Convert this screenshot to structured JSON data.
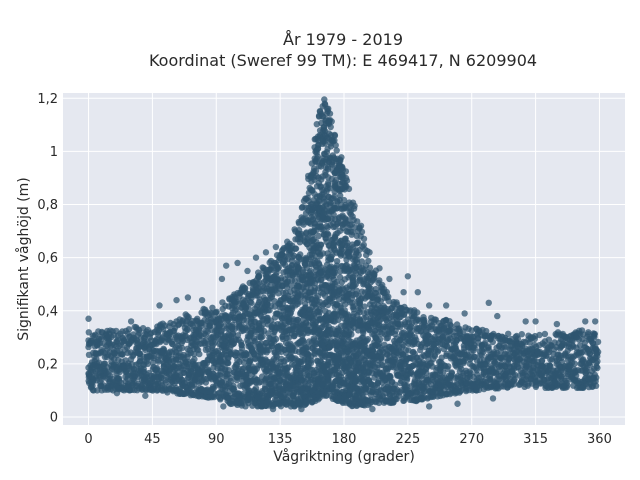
{
  "chart_data": {
    "type": "scatter",
    "title_line1": "År 1979 - 2019",
    "title_line2": "Koordinat (Sweref 99 TM): E 469417, N 6209904",
    "xlabel": "Vågriktning (grader)",
    "ylabel": "Signifikant våghöjd (m)",
    "xlim": [
      -18,
      378
    ],
    "ylim": [
      -0.03,
      1.22
    ],
    "x_ticks": [
      0,
      45,
      90,
      135,
      180,
      225,
      270,
      315,
      360
    ],
    "x_tick_labels": [
      "0",
      "45",
      "90",
      "135",
      "180",
      "225",
      "270",
      "315",
      "360"
    ],
    "y_ticks": [
      0,
      0.2,
      0.4,
      0.6,
      0.8,
      1.0,
      1.2
    ],
    "y_tick_labels": [
      "0",
      "0,2",
      "0,4",
      "0,6",
      "0,8",
      "1",
      "1,2"
    ],
    "grid": true,
    "background_color": "#e5e8f0",
    "marker_color": "#2f5670",
    "envelope": {
      "x": [
        0,
        20,
        45,
        60,
        75,
        90,
        100,
        110,
        120,
        130,
        140,
        145,
        150,
        155,
        160,
        163,
        166,
        169,
        172,
        175,
        180,
        185,
        190,
        195,
        200,
        205,
        210,
        220,
        230,
        240,
        250,
        260,
        270,
        280,
        290,
        300,
        315,
        330,
        345,
        360
      ],
      "upper": [
        0.32,
        0.33,
        0.35,
        0.37,
        0.4,
        0.42,
        0.45,
        0.5,
        0.55,
        0.6,
        0.65,
        0.7,
        0.78,
        0.92,
        1.05,
        1.15,
        1.2,
        1.18,
        1.1,
        1.02,
        0.95,
        0.85,
        0.75,
        0.65,
        0.58,
        0.52,
        0.47,
        0.42,
        0.4,
        0.38,
        0.37,
        0.35,
        0.34,
        0.33,
        0.33,
        0.32,
        0.31,
        0.32,
        0.33,
        0.32
      ],
      "lower": [
        0.1,
        0.1,
        0.1,
        0.09,
        0.08,
        0.07,
        0.05,
        0.04,
        0.04,
        0.04,
        0.04,
        0.04,
        0.04,
        0.05,
        0.06,
        0.07,
        0.08,
        0.08,
        0.07,
        0.06,
        0.05,
        0.04,
        0.04,
        0.04,
        0.05,
        0.05,
        0.05,
        0.06,
        0.06,
        0.07,
        0.08,
        0.09,
        0.1,
        0.1,
        0.11,
        0.11,
        0.11,
        0.11,
        0.11,
        0.11
      ]
    },
    "outliers": [
      {
        "x": 0,
        "y": 0.37
      },
      {
        "x": 30,
        "y": 0.36
      },
      {
        "x": 50,
        "y": 0.42
      },
      {
        "x": 62,
        "y": 0.44
      },
      {
        "x": 70,
        "y": 0.45
      },
      {
        "x": 80,
        "y": 0.44
      },
      {
        "x": 94,
        "y": 0.52
      },
      {
        "x": 97,
        "y": 0.57
      },
      {
        "x": 105,
        "y": 0.58
      },
      {
        "x": 112,
        "y": 0.55
      },
      {
        "x": 118,
        "y": 0.6
      },
      {
        "x": 125,
        "y": 0.62
      },
      {
        "x": 132,
        "y": 0.64
      },
      {
        "x": 140,
        "y": 0.66
      },
      {
        "x": 150,
        "y": 0.74
      },
      {
        "x": 185,
        "y": 0.8
      },
      {
        "x": 192,
        "y": 0.72
      },
      {
        "x": 198,
        "y": 0.62
      },
      {
        "x": 205,
        "y": 0.56
      },
      {
        "x": 212,
        "y": 0.52
      },
      {
        "x": 222,
        "y": 0.47
      },
      {
        "x": 225,
        "y": 0.53
      },
      {
        "x": 232,
        "y": 0.47
      },
      {
        "x": 240,
        "y": 0.42
      },
      {
        "x": 252,
        "y": 0.42
      },
      {
        "x": 265,
        "y": 0.39
      },
      {
        "x": 282,
        "y": 0.43
      },
      {
        "x": 288,
        "y": 0.38
      },
      {
        "x": 308,
        "y": 0.36
      },
      {
        "x": 315,
        "y": 0.36
      },
      {
        "x": 330,
        "y": 0.35
      },
      {
        "x": 350,
        "y": 0.36
      },
      {
        "x": 357,
        "y": 0.36
      },
      {
        "x": 95,
        "y": 0.04
      },
      {
        "x": 130,
        "y": 0.03
      },
      {
        "x": 150,
        "y": 0.03
      },
      {
        "x": 200,
        "y": 0.03
      },
      {
        "x": 240,
        "y": 0.04
      },
      {
        "x": 260,
        "y": 0.05
      },
      {
        "x": 285,
        "y": 0.07
      },
      {
        "x": 40,
        "y": 0.08
      },
      {
        "x": 20,
        "y": 0.09
      }
    ]
  }
}
